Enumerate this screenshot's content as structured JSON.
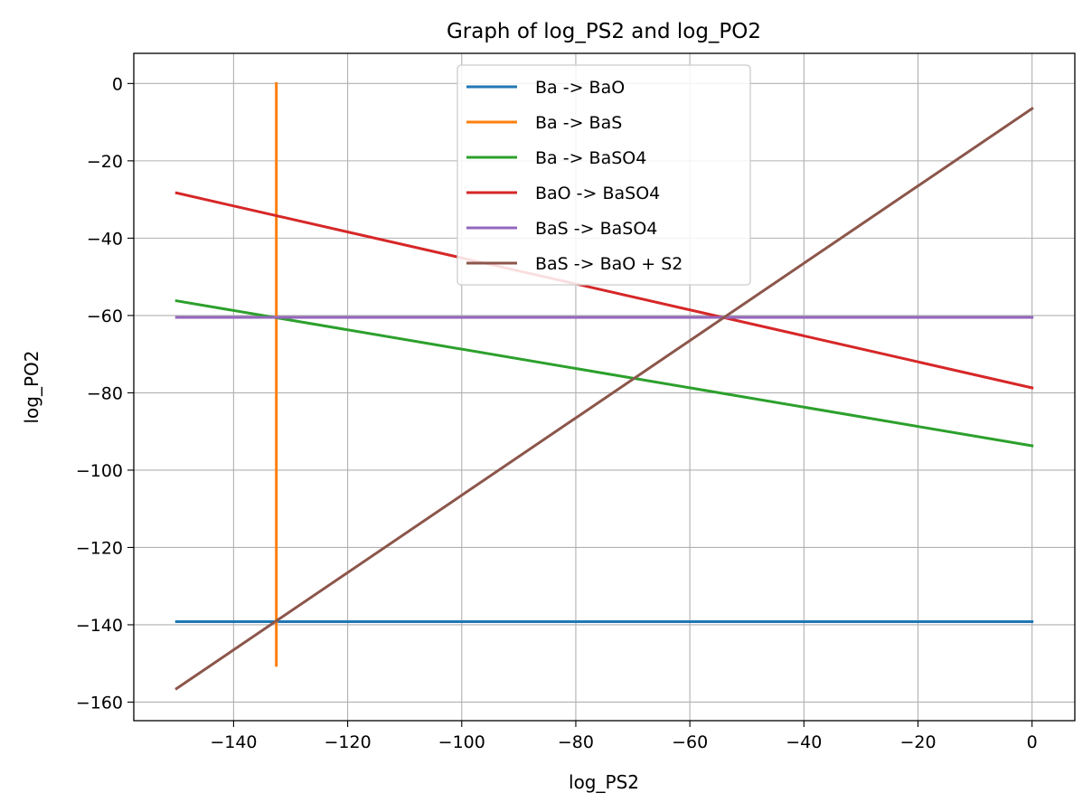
{
  "chart_data": {
    "type": "line",
    "title": "Graph of log_PS2 and log_PO2",
    "xlabel": "log_PS2",
    "ylabel": "log_PO2",
    "xlim": [
      -157.5,
      7.5
    ],
    "ylim": [
      -164.8,
      7.8
    ],
    "grid": true,
    "legend_position": "top-center",
    "xticks": [
      -140,
      -120,
      -100,
      -80,
      -60,
      -40,
      -20,
      0
    ],
    "yticks": [
      0,
      -20,
      -40,
      -60,
      -80,
      -100,
      -120,
      -140,
      -160
    ],
    "xtick_labels": [
      "−140",
      "−120",
      "−100",
      "−80",
      "−60",
      "−40",
      "−20",
      "0"
    ],
    "ytick_labels": [
      "0",
      "−20",
      "−40",
      "−60",
      "−80",
      "−100",
      "−120",
      "−140",
      "−160"
    ],
    "series": [
      {
        "name": "Ba -> BaO",
        "color": "#1f77b4",
        "x": [
          -150,
          0
        ],
        "y": [
          -139.2,
          -139.2
        ]
      },
      {
        "name": "Ba -> BaS",
        "color": "#ff7f0e",
        "x": [
          -132.5,
          -132.5
        ],
        "y": [
          0,
          -150.5
        ]
      },
      {
        "name": "Ba -> BaSO4",
        "color": "#2ca02c",
        "x": [
          -150,
          0
        ],
        "y": [
          -56.2,
          -93.7
        ]
      },
      {
        "name": "BaO -> BaSO4",
        "color": "#d62728",
        "x": [
          -150,
          0
        ],
        "y": [
          -28.3,
          -78.7
        ]
      },
      {
        "name": "BaS -> BaSO4",
        "color": "#9467bd",
        "x": [
          -150,
          0
        ],
        "y": [
          -60.5,
          -60.5
        ]
      },
      {
        "name": "BaS -> BaO + S2",
        "color": "#8c564b",
        "x": [
          -150,
          0
        ],
        "y": [
          -156.5,
          -6.5
        ]
      }
    ]
  }
}
